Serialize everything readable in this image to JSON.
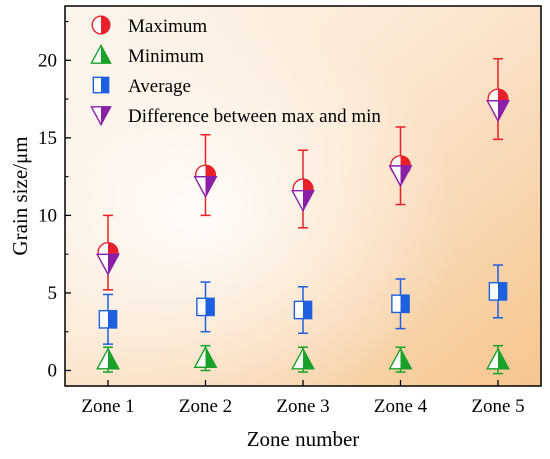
{
  "chart_data": {
    "type": "scatter",
    "xlabel": "Zone number",
    "ylabel": "Grain size/μm",
    "categories": [
      "Zone 1",
      "Zone 2",
      "Zone 3",
      "Zone 4",
      "Zone 5"
    ],
    "ylim": [
      -1,
      23.5
    ],
    "yticks": [
      0,
      5,
      10,
      15,
      20
    ],
    "legend_position": "top-left",
    "background": "gradient white to orange",
    "series": [
      {
        "name": "Maximum",
        "marker": "half-filled-circle",
        "color": "#e8202a",
        "values": [
          7.6,
          12.6,
          11.7,
          13.2,
          17.5
        ],
        "error": [
          2.4,
          2.6,
          2.5,
          2.5,
          2.6
        ]
      },
      {
        "name": "Minimum",
        "marker": "half-filled-triangle-up",
        "color": "#1aa12a",
        "values": [
          0.7,
          0.8,
          0.7,
          0.7,
          0.7
        ],
        "error": [
          0.8,
          0.8,
          0.8,
          0.8,
          0.9
        ]
      },
      {
        "name": "Average",
        "marker": "half-filled-square",
        "color": "#1e5fe0",
        "values": [
          3.3,
          4.1,
          3.9,
          4.3,
          5.1
        ],
        "error": [
          1.6,
          1.6,
          1.5,
          1.6,
          1.7
        ]
      },
      {
        "name": "Difference between max and min",
        "marker": "half-filled-triangle-down",
        "color": "#8b1fa8",
        "values": [
          6.9,
          11.9,
          11.0,
          12.6,
          16.8
        ],
        "error": null
      }
    ]
  }
}
